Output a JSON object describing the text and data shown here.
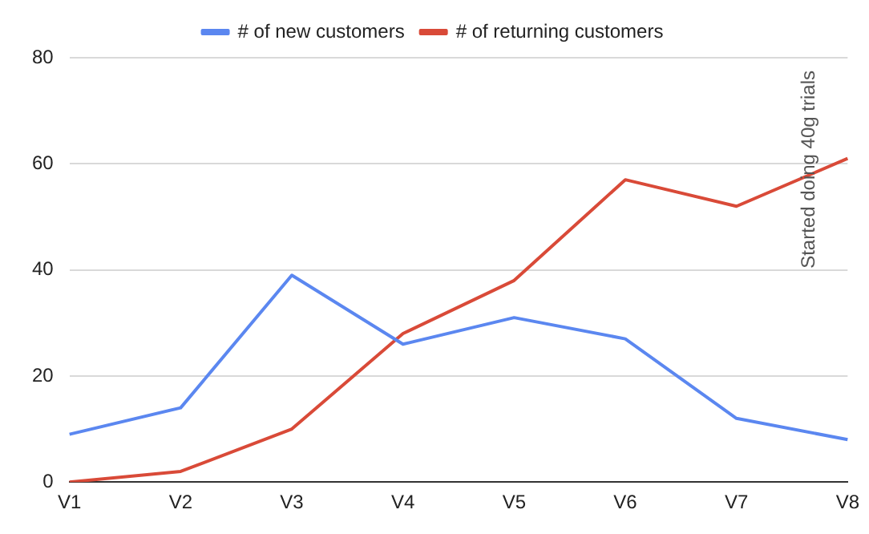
{
  "chart_data": {
    "type": "line",
    "categories": [
      "V1",
      "V2",
      "V3",
      "V4",
      "V5",
      "V6",
      "V7",
      "V8"
    ],
    "series": [
      {
        "name": "# of new customers",
        "color": "#5b87f0",
        "values": [
          9,
          14,
          39,
          26,
          31,
          27,
          12,
          8
        ]
      },
      {
        "name": "# of returning customers",
        "color": "#d94a38",
        "values": [
          0,
          2,
          10,
          28,
          38,
          57,
          52,
          61
        ]
      }
    ],
    "ylim": [
      0,
      80
    ],
    "yticks": [
      0,
      20,
      40,
      60,
      80
    ],
    "grid": "y",
    "legend": "top",
    "marker": "none",
    "line_style": "solid",
    "annotations": [
      "Started doing 40g trials"
    ]
  }
}
